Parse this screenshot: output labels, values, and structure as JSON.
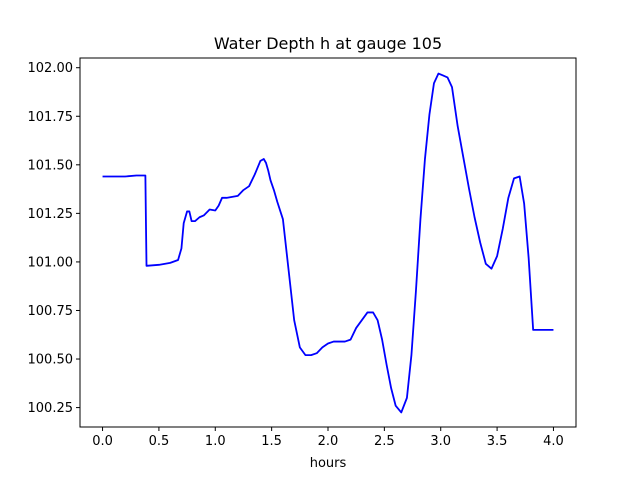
{
  "chart_data": {
    "type": "line",
    "title": "Water Depth h at gauge 105",
    "xlabel": "hours",
    "ylabel": "",
    "xlim": [
      -0.2,
      4.2
    ],
    "ylim": [
      100.15,
      102.05
    ],
    "grid": false,
    "line_color": "#0000ff",
    "x_ticks": [
      0.0,
      0.5,
      1.0,
      1.5,
      2.0,
      2.5,
      3.0,
      3.5,
      4.0
    ],
    "x_tick_labels": [
      "0.0",
      "0.5",
      "1.0",
      "1.5",
      "2.0",
      "2.5",
      "3.0",
      "3.5",
      "4.0"
    ],
    "y_ticks": [
      100.25,
      100.5,
      100.75,
      101.0,
      101.25,
      101.5,
      101.75,
      102.0
    ],
    "y_tick_labels": [
      "100.25",
      "100.50",
      "100.75",
      "101.00",
      "101.25",
      "101.50",
      "101.75",
      "102.00"
    ],
    "series": [
      {
        "x": [
          0.0,
          0.2,
          0.3,
          0.38,
          0.385,
          0.39,
          0.5,
          0.6,
          0.67,
          0.7,
          0.72,
          0.75,
          0.77,
          0.79,
          0.82,
          0.86,
          0.9,
          0.95,
          1.0,
          1.03,
          1.06,
          1.1,
          1.15,
          1.2,
          1.25,
          1.3,
          1.35,
          1.4,
          1.43,
          1.45,
          1.47,
          1.49,
          1.52,
          1.55,
          1.6,
          1.65,
          1.7,
          1.75,
          1.8,
          1.85,
          1.9,
          1.95,
          2.0,
          2.05,
          2.1,
          2.15,
          2.2,
          2.25,
          2.3,
          2.35,
          2.4,
          2.44,
          2.48,
          2.52,
          2.56,
          2.6,
          2.65,
          2.7,
          2.74,
          2.78,
          2.82,
          2.86,
          2.9,
          2.94,
          2.98,
          3.02,
          3.06,
          3.1,
          3.15,
          3.2,
          3.25,
          3.3,
          3.35,
          3.4,
          3.45,
          3.5,
          3.55,
          3.6,
          3.65,
          3.7,
          3.74,
          3.78,
          3.82,
          3.86,
          3.9,
          3.94,
          4.0
        ],
        "y": [
          101.44,
          101.44,
          101.445,
          101.445,
          101.2,
          100.98,
          100.985,
          100.995,
          101.01,
          101.07,
          101.2,
          101.26,
          101.26,
          101.21,
          101.21,
          101.23,
          101.24,
          101.27,
          101.265,
          101.29,
          101.33,
          101.33,
          101.335,
          101.34,
          101.37,
          101.39,
          101.45,
          101.52,
          101.53,
          101.51,
          101.47,
          101.42,
          101.37,
          101.31,
          101.22,
          100.96,
          100.7,
          100.56,
          100.52,
          100.52,
          100.53,
          100.56,
          100.58,
          100.59,
          100.59,
          100.59,
          100.6,
          100.66,
          100.7,
          100.74,
          100.74,
          100.7,
          100.6,
          100.47,
          100.35,
          100.26,
          100.225,
          100.3,
          100.52,
          100.85,
          101.22,
          101.53,
          101.76,
          101.92,
          101.97,
          101.96,
          101.95,
          101.9,
          101.7,
          101.54,
          101.38,
          101.23,
          101.1,
          100.99,
          100.965,
          101.03,
          101.17,
          101.33,
          101.43,
          101.44,
          101.3,
          101.02,
          100.65,
          100.65,
          100.65,
          100.65,
          100.65
        ]
      }
    ]
  }
}
